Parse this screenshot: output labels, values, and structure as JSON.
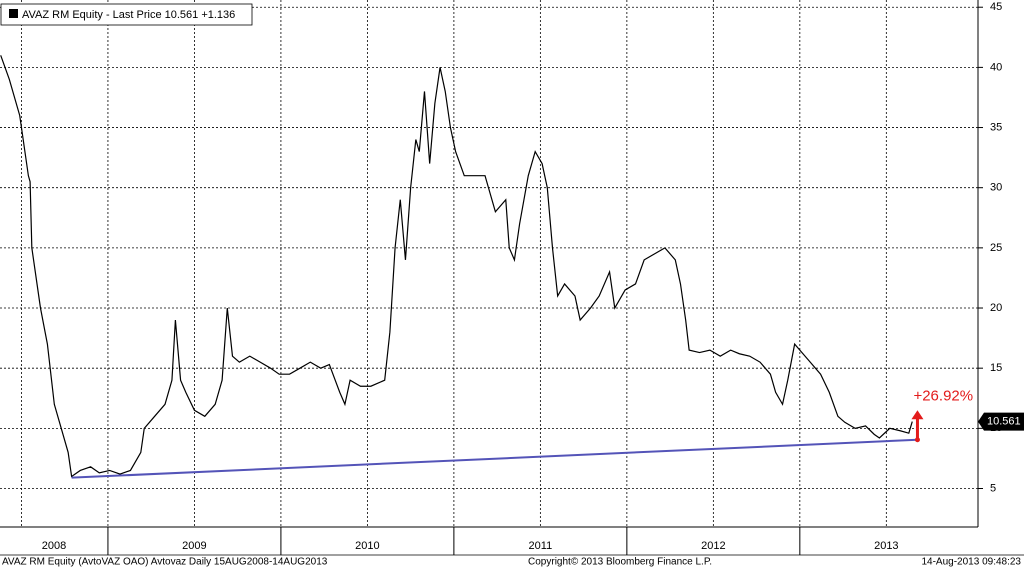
{
  "chart_data": {
    "type": "line",
    "legend": "AVAZ RM Equity - Last Price 10.561 +1.136",
    "footer_left": "AVAZ RM Equity (AvtoVAZ OAO) Avtovaz  Daily 15AUG2008-14AUG2013",
    "footer_center": "Copyright© 2013 Bloomberg Finance L.P.",
    "footer_right": "14-Aug-2013 09:48:23",
    "last_value": 10.561,
    "xlim": [
      2008.376,
      2014.03
    ],
    "ylim": [
      1.8,
      45.6
    ],
    "xticks": [
      {
        "value": 2008.5,
        "label": "2008"
      },
      {
        "value": 2009.5,
        "label": "2009"
      },
      {
        "value": 2010.5,
        "label": "2010"
      },
      {
        "value": 2011.5,
        "label": "2011"
      },
      {
        "value": 2012.5,
        "label": "2012"
      },
      {
        "value": 2013.5,
        "label": "2013"
      }
    ],
    "yticks": [
      5,
      10,
      15,
      20,
      25,
      30,
      35,
      40,
      45
    ],
    "grid": true,
    "series": [
      {
        "color": "#000000",
        "x": [
          2008.38,
          2008.43,
          2008.49,
          2008.54,
          2008.55,
          2008.56,
          2008.61,
          2008.65,
          2008.69,
          2008.73,
          2008.77,
          2008.79,
          2008.84,
          2008.9,
          2008.95,
          2009.01,
          2009.07,
          2009.13,
          2009.19,
          2009.21,
          2009.27,
          2009.33,
          2009.37,
          2009.39,
          2009.42,
          2009.45,
          2009.5,
          2009.56,
          2009.62,
          2009.66,
          2009.69,
          2009.72,
          2009.76,
          2009.82,
          2009.88,
          2009.94,
          2009.99,
          2010.05,
          2010.11,
          2010.17,
          2010.23,
          2010.28,
          2010.34,
          2010.37,
          2010.4,
          2010.46,
          2010.52,
          2010.6,
          2010.63,
          2010.66,
          2010.69,
          2010.72,
          2010.75,
          2010.78,
          2010.8,
          2010.83,
          2010.86,
          2010.89,
          2010.92,
          2010.95,
          2010.98,
          2011.01,
          2011.06,
          2011.12,
          2011.18,
          2011.24,
          2011.3,
          2011.32,
          2011.35,
          2011.38,
          2011.43,
          2011.47,
          2011.51,
          2011.54,
          2011.57,
          2011.6,
          2011.64,
          2011.7,
          2011.73,
          2011.79,
          2011.84,
          2011.9,
          2011.93,
          2011.99,
          2012.05,
          2012.1,
          2012.16,
          2012.22,
          2012.28,
          2012.31,
          2012.34,
          2012.36,
          2012.42,
          2012.48,
          2012.54,
          2012.6,
          2012.65,
          2012.71,
          2012.77,
          2012.83,
          2012.86,
          2012.9,
          2012.93,
          2012.97,
          2013.0,
          2013.06,
          2013.12,
          2013.17,
          2013.22,
          2013.26,
          2013.32,
          2013.38,
          2013.43,
          2013.46,
          2013.52,
          2013.58,
          2013.63,
          2013.65
        ],
        "values": [
          41,
          39,
          36,
          31,
          30.5,
          25,
          20,
          17,
          12,
          10,
          8,
          6,
          6.5,
          6.8,
          6.3,
          6.5,
          6.2,
          6.5,
          8,
          10,
          11,
          12,
          14,
          19,
          14,
          13,
          11.5,
          11,
          12,
          14,
          20,
          16,
          15.5,
          16,
          15.5,
          15,
          14.5,
          14.5,
          15,
          15.5,
          15,
          15.3,
          13,
          12,
          14,
          13.5,
          13.5,
          14,
          18,
          25,
          29,
          24,
          30,
          34,
          33,
          38,
          32,
          37,
          40,
          38,
          35,
          33,
          31,
          31,
          31,
          28,
          29,
          25,
          24,
          27,
          31,
          33,
          32,
          30,
          25,
          21,
          22,
          21,
          19,
          20,
          21,
          23,
          20,
          21.5,
          22,
          24,
          24.5,
          25,
          24,
          22,
          19,
          16.5,
          16.3,
          16.5,
          16,
          16.5,
          16.2,
          16,
          15.5,
          14.5,
          13,
          12,
          14,
          17,
          16.5,
          15.5,
          14.5,
          13,
          11,
          10.5,
          10,
          10.2,
          9.5,
          9.2,
          10,
          9.8,
          9.6,
          10.561
        ]
      }
    ],
    "trendline": {
      "color": "#5454b8",
      "x": [
        2008.79,
        2013.68
      ],
      "values": [
        5.9,
        9.05
      ]
    },
    "arrow": {
      "color": "#e31b1b",
      "x": 2013.68,
      "from": 9.05,
      "to": 11.5,
      "label": "+26.92%"
    }
  }
}
